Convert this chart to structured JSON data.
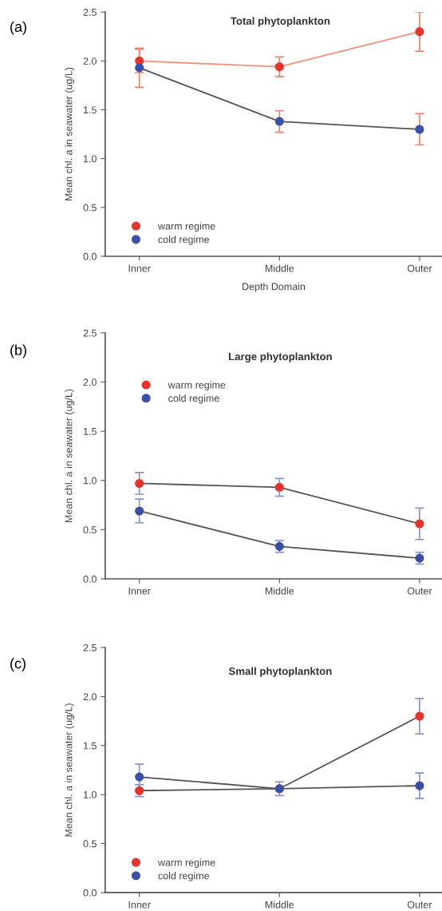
{
  "chart_data": [
    {
      "type": "line",
      "title": "Total phytoplankton",
      "xlabel": "Depth Domain",
      "ylabel": "Mean chl. a in seawater (ug/L)",
      "annotations": [
        "(a)"
      ],
      "categories": [
        "Inner",
        "Middle",
        "Outer"
      ],
      "ylim": [
        0,
        2.5
      ],
      "yticks": [
        {
          "value": 0,
          "label": "0.0"
        },
        {
          "value": 0.5,
          "label": "0.5"
        },
        {
          "value": 1,
          "label": "1.0"
        },
        {
          "value": 1.5,
          "label": "1.5"
        },
        {
          "value": 2,
          "label": "2.0"
        },
        {
          "value": 2.5,
          "label": "2.5"
        }
      ],
      "legend": "bottom left",
      "marker": "circle",
      "grid": false,
      "series": [
        {
          "name": "warm regime",
          "color": "#e8332a",
          "values": [
            2.0,
            1.94,
            2.3
          ],
          "errors": [
            0.12,
            0.1,
            0.2
          ]
        },
        {
          "name": "cold regime",
          "color": "#3a4fa8",
          "values": [
            1.93,
            1.38,
            1.3
          ],
          "errors": [
            0.2,
            0.11,
            0.16
          ]
        }
      ]
    },
    {
      "type": "line",
      "title": "Large phytoplankton",
      "ylabel": "Mean chl. a in seawater (ug/L)",
      "annotations": [
        "(b)"
      ],
      "categories": [
        "Inner",
        "Middle",
        "Outer"
      ],
      "ylim": [
        0,
        2.5
      ],
      "yticks": [
        {
          "value": 0,
          "label": "0.0"
        },
        {
          "value": 0.5,
          "label": "0.5"
        },
        {
          "value": 1,
          "label": "1.0"
        },
        {
          "value": 1.5,
          "label": "1.5"
        },
        {
          "value": 2,
          "label": "2.0"
        },
        {
          "value": 2.5,
          "label": "2.5"
        }
      ],
      "legend": "top left",
      "marker": "circle",
      "grid": false,
      "series": [
        {
          "name": "warm regime",
          "color": "#e8332a",
          "values": [
            0.97,
            0.93,
            0.56
          ],
          "errors": [
            0.11,
            0.09,
            0.16
          ]
        },
        {
          "name": "cold regime",
          "color": "#3a4fa8",
          "values": [
            0.69,
            0.33,
            0.21
          ],
          "errors": [
            0.12,
            0.06,
            0.06
          ]
        }
      ]
    },
    {
      "type": "line",
      "title": "Small phytoplankton",
      "ylabel": "Mean chl. a in seawater (ug/L)",
      "annotations": [
        "(c)"
      ],
      "categories": [
        "Inner",
        "Middle",
        "Outer"
      ],
      "ylim": [
        0,
        2.5
      ],
      "yticks": [
        {
          "value": 0,
          "label": "0.0"
        },
        {
          "value": 0.5,
          "label": "0.5"
        },
        {
          "value": 1,
          "label": "1.0"
        },
        {
          "value": 1.5,
          "label": "1.5"
        },
        {
          "value": 2,
          "label": "2.0"
        },
        {
          "value": 2.5,
          "label": "2.5"
        }
      ],
      "legend": "bottom left",
      "marker": "circle",
      "grid": false,
      "series": [
        {
          "name": "warm regime",
          "color": "#e8332a",
          "values": [
            1.04,
            1.06,
            1.8
          ],
          "errors": [
            0.06,
            null,
            0.18
          ]
        },
        {
          "name": "cold regime",
          "color": "#3a4fa8",
          "values": [
            1.18,
            1.06,
            1.09
          ],
          "errors": [
            0.13,
            0.07,
            0.13
          ]
        }
      ]
    }
  ]
}
